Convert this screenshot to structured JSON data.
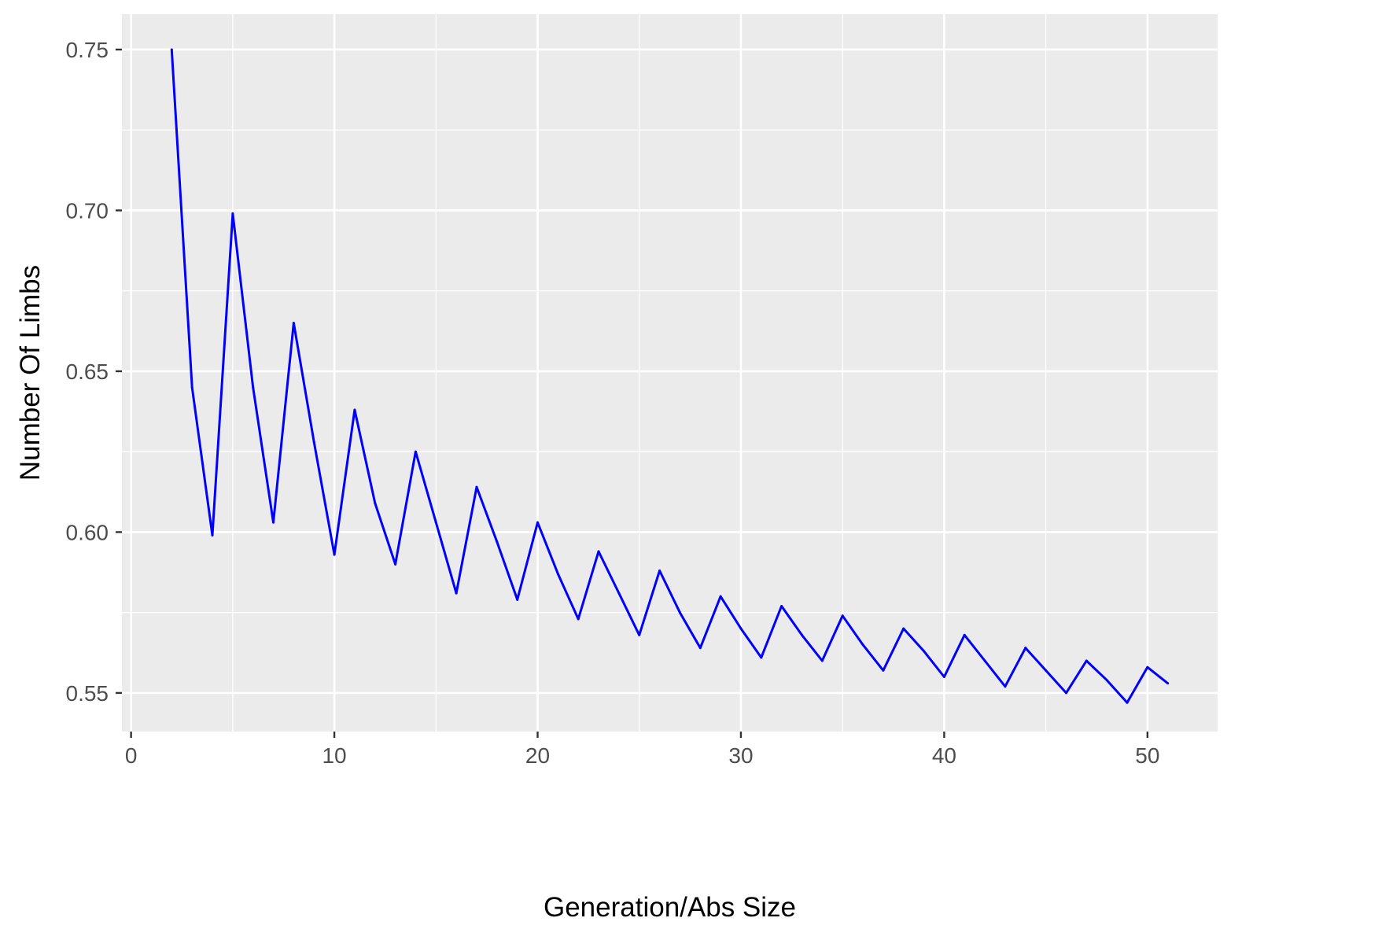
{
  "chart_data": {
    "type": "line",
    "title": "",
    "xlabel": "Generation/Abs Size",
    "ylabel": "Number Of Limbs",
    "xlim": [
      -0.45,
      53.45
    ],
    "ylim": [
      0.538,
      0.761
    ],
    "x_ticks": [
      0,
      10,
      20,
      30,
      40,
      50
    ],
    "x_tick_labels": [
      "0",
      "10",
      "20",
      "30",
      "40",
      "50"
    ],
    "x_minor_ticks": [
      5,
      15,
      25,
      35,
      45
    ],
    "y_ticks": [
      0.55,
      0.6,
      0.65,
      0.7,
      0.75
    ],
    "y_tick_labels": [
      "0.55",
      "0.60",
      "0.65",
      "0.70",
      "0.75"
    ],
    "y_minor_ticks": [
      0.575,
      0.625,
      0.675,
      0.725
    ],
    "grid": true,
    "legend": "none",
    "colors": {
      "line": "#0000ff",
      "panel_background": "#ebebeb",
      "grid": "#ffffff"
    },
    "series": [
      {
        "x": [
          2,
          3,
          4,
          5,
          6,
          7,
          8,
          9,
          10,
          11,
          12,
          13,
          14,
          15,
          16,
          17,
          18,
          19,
          20,
          21,
          22,
          23,
          24,
          25,
          26,
          27,
          28,
          29,
          30,
          31,
          32,
          33,
          34,
          35,
          36,
          37,
          38,
          39,
          40,
          41,
          42,
          43,
          44,
          45,
          46,
          47,
          48,
          49,
          50,
          51
        ],
        "values": [
          0.75,
          0.645,
          0.599,
          0.699,
          0.645,
          0.603,
          0.665,
          0.628,
          0.593,
          0.638,
          0.609,
          0.59,
          0.625,
          0.603,
          0.581,
          0.614,
          0.597,
          0.579,
          0.603,
          0.587,
          0.573,
          0.594,
          0.581,
          0.568,
          0.588,
          0.575,
          0.564,
          0.58,
          0.57,
          0.561,
          0.577,
          0.568,
          0.56,
          0.574,
          0.565,
          0.557,
          0.57,
          0.563,
          0.555,
          0.568,
          0.56,
          0.552,
          0.564,
          0.557,
          0.55,
          0.56,
          0.554,
          0.547,
          0.558,
          0.553
        ]
      }
    ]
  }
}
